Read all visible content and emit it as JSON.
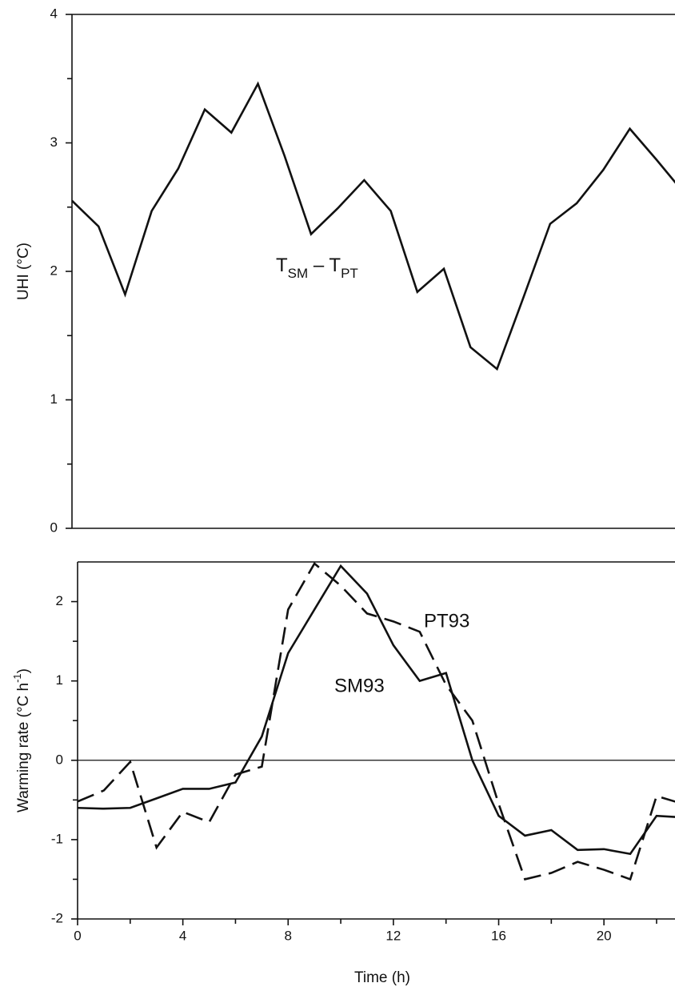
{
  "chart_data": [
    {
      "type": "line",
      "ylabel": "UHI (°C)",
      "annotation": [
        "T",
        "SM",
        " – T",
        "PT"
      ],
      "x": [
        0,
        1,
        2,
        3,
        4,
        5,
        6,
        7,
        8,
        9,
        10,
        11,
        12,
        13,
        14,
        15,
        16,
        17,
        18,
        19,
        20,
        21,
        22,
        23
      ],
      "series": [
        {
          "name": null,
          "color": "#111111",
          "dash": false,
          "values": [
            2.55,
            2.35,
            1.82,
            2.47,
            2.8,
            3.26,
            3.08,
            3.46,
            2.9,
            2.29,
            2.49,
            2.71,
            2.47,
            1.84,
            2.02,
            1.41,
            1.24,
            1.8,
            2.37,
            2.53,
            2.79,
            3.11,
            2.87,
            2.62
          ]
        }
      ],
      "xlim": [
        0,
        22.7
      ],
      "ylim": [
        0,
        4
      ],
      "yticks": [
        0,
        1,
        2,
        3,
        4
      ],
      "yminorticks": [
        0.5,
        1.5,
        2.5,
        3.5
      ]
    },
    {
      "type": "line",
      "xlabel": "Time (h)",
      "ylabel": [
        "Warming rate (°C h",
        "-1",
        ")"
      ],
      "x": [
        0,
        1,
        2,
        3,
        4,
        5,
        6,
        7,
        8,
        9,
        10,
        11,
        12,
        13,
        14,
        15,
        16,
        17,
        18,
        19,
        20,
        21,
        22,
        23
      ],
      "series": [
        {
          "name": "SM93",
          "color": "#111111",
          "dash": false,
          "values": [
            -0.6,
            -0.61,
            -0.6,
            -0.48,
            -0.36,
            -0.36,
            -0.28,
            0.3,
            1.35,
            1.9,
            2.45,
            2.1,
            1.45,
            1.0,
            1.1,
            0.0,
            -0.7,
            -0.95,
            -0.88,
            -1.13,
            -1.12,
            -1.18,
            -0.7,
            -0.72
          ]
        },
        {
          "name": "PT93",
          "color": "#111111",
          "dash": true,
          "values": [
            -0.52,
            -0.38,
            -0.02,
            -1.1,
            -0.65,
            -0.78,
            -0.18,
            -0.08,
            1.9,
            2.48,
            2.2,
            1.85,
            1.75,
            1.62,
            0.95,
            0.5,
            -0.55,
            -1.5,
            -1.42,
            -1.28,
            -1.38,
            -1.5,
            -0.45,
            -0.55
          ]
        }
      ],
      "xlim": [
        0,
        22.7
      ],
      "xticks": [
        0,
        4,
        8,
        12,
        16,
        20
      ],
      "xminorticks": [
        2,
        6,
        10,
        14,
        18,
        22
      ],
      "ylim": [
        -2,
        2.5
      ],
      "yticks": [
        -2,
        -1,
        0,
        1,
        2
      ],
      "yminorticks": [
        -1.5,
        -0.5,
        0.5,
        1.5
      ],
      "hlines": [
        0
      ]
    }
  ]
}
